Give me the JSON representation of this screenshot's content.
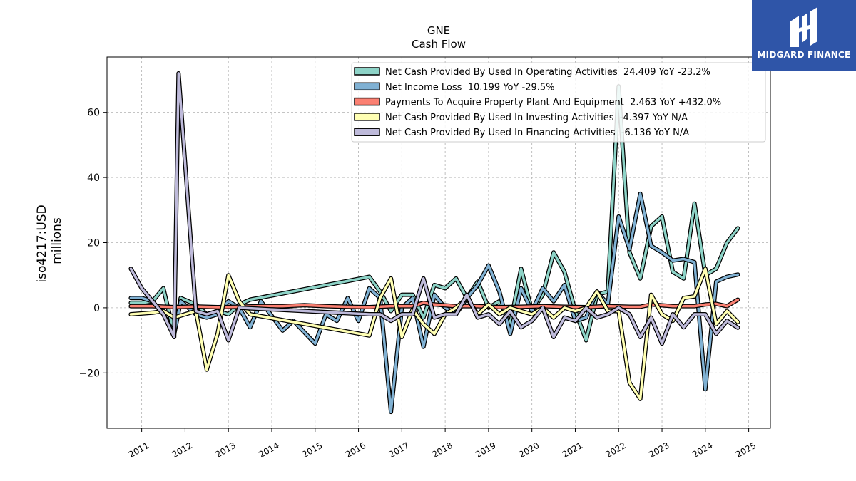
{
  "chart_data": {
    "type": "line",
    "title": "GNE",
    "subtitle": "Cash Flow",
    "ylabel": "iso4217:USD\nmillions",
    "xlabel": "",
    "ylim": [
      -37,
      77
    ],
    "xlim": [
      2010.2,
      2025.5
    ],
    "yticks": [
      -20,
      0,
      20,
      40,
      60
    ],
    "ytick_labels": [
      "−20",
      "0",
      "20",
      "40",
      "60"
    ],
    "xticks": [
      2011,
      2012,
      2013,
      2014,
      2015,
      2016,
      2017,
      2018,
      2019,
      2020,
      2021,
      2022,
      2023,
      2024,
      2025
    ],
    "xtick_labels": [
      "2011",
      "2012",
      "2013",
      "2014",
      "2015",
      "2016",
      "2017",
      "2018",
      "2019",
      "2020",
      "2021",
      "2022",
      "2023",
      "2024",
      "2025"
    ],
    "grid": true,
    "legend_position": "top-right",
    "series": [
      {
        "name": "Net Cash Provided By Used In Operating Activities  24.409 YoY -23.2%",
        "color": "#8dd3c7",
        "points": [
          [
            2010.75,
            1.5
          ],
          [
            2011.0,
            1.5
          ],
          [
            2011.25,
            2
          ],
          [
            2011.5,
            6
          ],
          [
            2011.75,
            -8
          ],
          [
            2011.9,
            3
          ],
          [
            2012.25,
            1
          ],
          [
            2012.5,
            -2
          ],
          [
            2012.75,
            -1
          ],
          [
            2013.0,
            -2
          ],
          [
            2013.25,
            1
          ],
          [
            2013.5,
            2.5
          ],
          [
            2016.25,
            9.5
          ],
          [
            2016.5,
            5
          ],
          [
            2016.75,
            -1
          ],
          [
            2017.0,
            4
          ],
          [
            2017.25,
            4
          ],
          [
            2017.5,
            -3
          ],
          [
            2017.75,
            7
          ],
          [
            2018.0,
            6
          ],
          [
            2018.25,
            9
          ],
          [
            2018.5,
            3
          ],
          [
            2018.75,
            8
          ],
          [
            2019.0,
            0
          ],
          [
            2019.25,
            2
          ],
          [
            2019.5,
            -5
          ],
          [
            2019.75,
            12
          ],
          [
            2020.0,
            -1
          ],
          [
            2020.25,
            4
          ],
          [
            2020.5,
            17
          ],
          [
            2020.75,
            11
          ],
          [
            2021.0,
            -1
          ],
          [
            2021.25,
            -10
          ],
          [
            2021.5,
            4
          ],
          [
            2021.75,
            5
          ],
          [
            2022.0,
            68
          ],
          [
            2022.25,
            17
          ],
          [
            2022.5,
            9
          ],
          [
            2022.75,
            25
          ],
          [
            2023.0,
            28
          ],
          [
            2023.25,
            11
          ],
          [
            2023.5,
            9
          ],
          [
            2023.75,
            32
          ],
          [
            2024.0,
            10
          ],
          [
            2024.25,
            12
          ],
          [
            2024.5,
            20
          ],
          [
            2024.75,
            24.4
          ]
        ]
      },
      {
        "name": "Net Income Loss  10.199 YoY -29.5%",
        "color": "#80b1d3",
        "points": [
          [
            2010.75,
            3
          ],
          [
            2011.0,
            3
          ],
          [
            2011.25,
            2
          ],
          [
            2011.5,
            -2
          ],
          [
            2011.75,
            -8
          ],
          [
            2011.9,
            2
          ],
          [
            2012.25,
            -2
          ],
          [
            2012.5,
            -3
          ],
          [
            2012.75,
            -2
          ],
          [
            2013.0,
            2
          ],
          [
            2013.25,
            0
          ],
          [
            2013.5,
            -6
          ],
          [
            2013.75,
            2
          ],
          [
            2014.25,
            -7
          ],
          [
            2014.5,
            -4
          ],
          [
            2015.0,
            -11
          ],
          [
            2015.25,
            -2
          ],
          [
            2015.5,
            -4
          ],
          [
            2015.75,
            3
          ],
          [
            2016.0,
            -4
          ],
          [
            2016.25,
            6
          ],
          [
            2016.5,
            3
          ],
          [
            2016.75,
            -32
          ],
          [
            2017.0,
            0
          ],
          [
            2017.25,
            3
          ],
          [
            2017.5,
            -12
          ],
          [
            2017.75,
            4
          ],
          [
            2018.0,
            0
          ],
          [
            2018.25,
            -2
          ],
          [
            2018.5,
            3
          ],
          [
            2018.75,
            7
          ],
          [
            2019.0,
            13
          ],
          [
            2019.25,
            5
          ],
          [
            2019.5,
            -8
          ],
          [
            2019.75,
            6
          ],
          [
            2020.0,
            -1
          ],
          [
            2020.25,
            6
          ],
          [
            2020.5,
            2
          ],
          [
            2020.75,
            7
          ],
          [
            2021.0,
            -4
          ],
          [
            2021.25,
            -3
          ],
          [
            2021.5,
            5
          ],
          [
            2021.75,
            1
          ],
          [
            2022.0,
            28
          ],
          [
            2022.25,
            18
          ],
          [
            2022.5,
            35
          ],
          [
            2022.75,
            19
          ],
          [
            2023.0,
            17
          ],
          [
            2023.25,
            14.5
          ],
          [
            2023.5,
            15
          ],
          [
            2023.75,
            14
          ],
          [
            2024.0,
            -25
          ],
          [
            2024.25,
            8
          ],
          [
            2024.5,
            9.5
          ],
          [
            2024.75,
            10.2
          ]
        ]
      },
      {
        "name": "Payments To Acquire Property Plant And Equipment  2.463 YoY +432.0%",
        "color": "#fb8072",
        "points": [
          [
            2010.75,
            0.5
          ],
          [
            2011.25,
            0.5
          ],
          [
            2011.75,
            0.2
          ],
          [
            2012.25,
            0.4
          ],
          [
            2012.75,
            0.2
          ],
          [
            2013.25,
            0.3
          ],
          [
            2013.75,
            0.5
          ],
          [
            2014.25,
            0.5
          ],
          [
            2014.75,
            0.8
          ],
          [
            2015.25,
            0.5
          ],
          [
            2015.75,
            0.3
          ],
          [
            2016.25,
            0.2
          ],
          [
            2016.75,
            0.5
          ],
          [
            2017.25,
            0.5
          ],
          [
            2017.5,
            1.5
          ],
          [
            2017.75,
            1
          ],
          [
            2018.25,
            0.5
          ],
          [
            2018.75,
            0.5
          ],
          [
            2019.25,
            0.2
          ],
          [
            2019.75,
            0.3
          ],
          [
            2020.25,
            0.5
          ],
          [
            2020.75,
            0.3
          ],
          [
            2021.25,
            0.2
          ],
          [
            2021.75,
            0.5
          ],
          [
            2022.25,
            0.3
          ],
          [
            2022.5,
            0.3
          ],
          [
            2022.75,
            1
          ],
          [
            2023.25,
            0.5
          ],
          [
            2023.75,
            0.5
          ],
          [
            2024.0,
            1
          ],
          [
            2024.25,
            1.2
          ],
          [
            2024.5,
            0.5
          ],
          [
            2024.75,
            2.5
          ]
        ]
      },
      {
        "name": "Net Cash Provided By Used In Investing Activities  -4.397 YoY N/A",
        "color": "#ffffb3",
        "points": [
          [
            2010.75,
            -2
          ],
          [
            2011.25,
            -1.5
          ],
          [
            2011.5,
            -1
          ],
          [
            2011.75,
            -3
          ],
          [
            2012.25,
            -1
          ],
          [
            2012.5,
            -19
          ],
          [
            2012.75,
            -8
          ],
          [
            2013.0,
            10
          ],
          [
            2013.25,
            2
          ],
          [
            2013.5,
            -2
          ],
          [
            2016.25,
            -8.5
          ],
          [
            2016.5,
            3
          ],
          [
            2016.75,
            9
          ],
          [
            2017.0,
            -9
          ],
          [
            2017.25,
            -0.5
          ],
          [
            2017.5,
            -5
          ],
          [
            2017.75,
            -8
          ],
          [
            2018.0,
            -2
          ],
          [
            2018.25,
            0
          ],
          [
            2018.5,
            3
          ],
          [
            2018.75,
            -2
          ],
          [
            2019.0,
            1
          ],
          [
            2019.25,
            -2
          ],
          [
            2019.5,
            0
          ],
          [
            2019.75,
            -1
          ],
          [
            2020.0,
            -2
          ],
          [
            2020.25,
            0
          ],
          [
            2020.5,
            -3
          ],
          [
            2020.75,
            0
          ],
          [
            2021.0,
            -1
          ],
          [
            2021.25,
            0
          ],
          [
            2021.5,
            5
          ],
          [
            2021.75,
            -1
          ],
          [
            2022.0,
            -1
          ],
          [
            2022.25,
            -23
          ],
          [
            2022.5,
            -28
          ],
          [
            2022.75,
            4
          ],
          [
            2023.0,
            -2
          ],
          [
            2023.25,
            -4
          ],
          [
            2023.5,
            3
          ],
          [
            2023.75,
            3.5
          ],
          [
            2024.0,
            12
          ],
          [
            2024.25,
            -5
          ],
          [
            2024.5,
            -1
          ],
          [
            2024.75,
            -4.4
          ]
        ]
      },
      {
        "name": "Net Cash Provided By Used In Financing Activities  -6.136 YoY N/A",
        "color": "#bebada",
        "points": [
          [
            2010.75,
            12
          ],
          [
            2011.0,
            6
          ],
          [
            2011.25,
            2
          ],
          [
            2011.5,
            -2
          ],
          [
            2011.75,
            -9
          ],
          [
            2011.85,
            72
          ],
          [
            2012.25,
            -1
          ],
          [
            2012.5,
            -2
          ],
          [
            2012.75,
            -1
          ],
          [
            2013.0,
            -10
          ],
          [
            2013.25,
            0
          ],
          [
            2016.25,
            -2
          ],
          [
            2016.5,
            -2
          ],
          [
            2016.75,
            -4
          ],
          [
            2017.0,
            -2
          ],
          [
            2017.25,
            -2
          ],
          [
            2017.5,
            9
          ],
          [
            2017.75,
            -3
          ],
          [
            2018.0,
            -2
          ],
          [
            2018.25,
            -2
          ],
          [
            2018.5,
            4
          ],
          [
            2018.75,
            -3
          ],
          [
            2019.0,
            -2
          ],
          [
            2019.25,
            -5
          ],
          [
            2019.5,
            -1
          ],
          [
            2019.75,
            -6
          ],
          [
            2020.0,
            -4
          ],
          [
            2020.25,
            0
          ],
          [
            2020.5,
            -9
          ],
          [
            2020.75,
            -3
          ],
          [
            2021.0,
            -4
          ],
          [
            2021.25,
            0
          ],
          [
            2021.5,
            -3
          ],
          [
            2021.75,
            -2
          ],
          [
            2022.0,
            0
          ],
          [
            2022.25,
            -2
          ],
          [
            2022.5,
            -9
          ],
          [
            2022.75,
            -3
          ],
          [
            2023.0,
            -11
          ],
          [
            2023.25,
            -2
          ],
          [
            2023.5,
            -6
          ],
          [
            2023.75,
            -2
          ],
          [
            2024.0,
            -2
          ],
          [
            2024.25,
            -8
          ],
          [
            2024.5,
            -4
          ],
          [
            2024.75,
            -6.1
          ]
        ]
      }
    ]
  },
  "logo": {
    "text": "MIDGARD FINANCE",
    "background": "#2f55a8"
  }
}
